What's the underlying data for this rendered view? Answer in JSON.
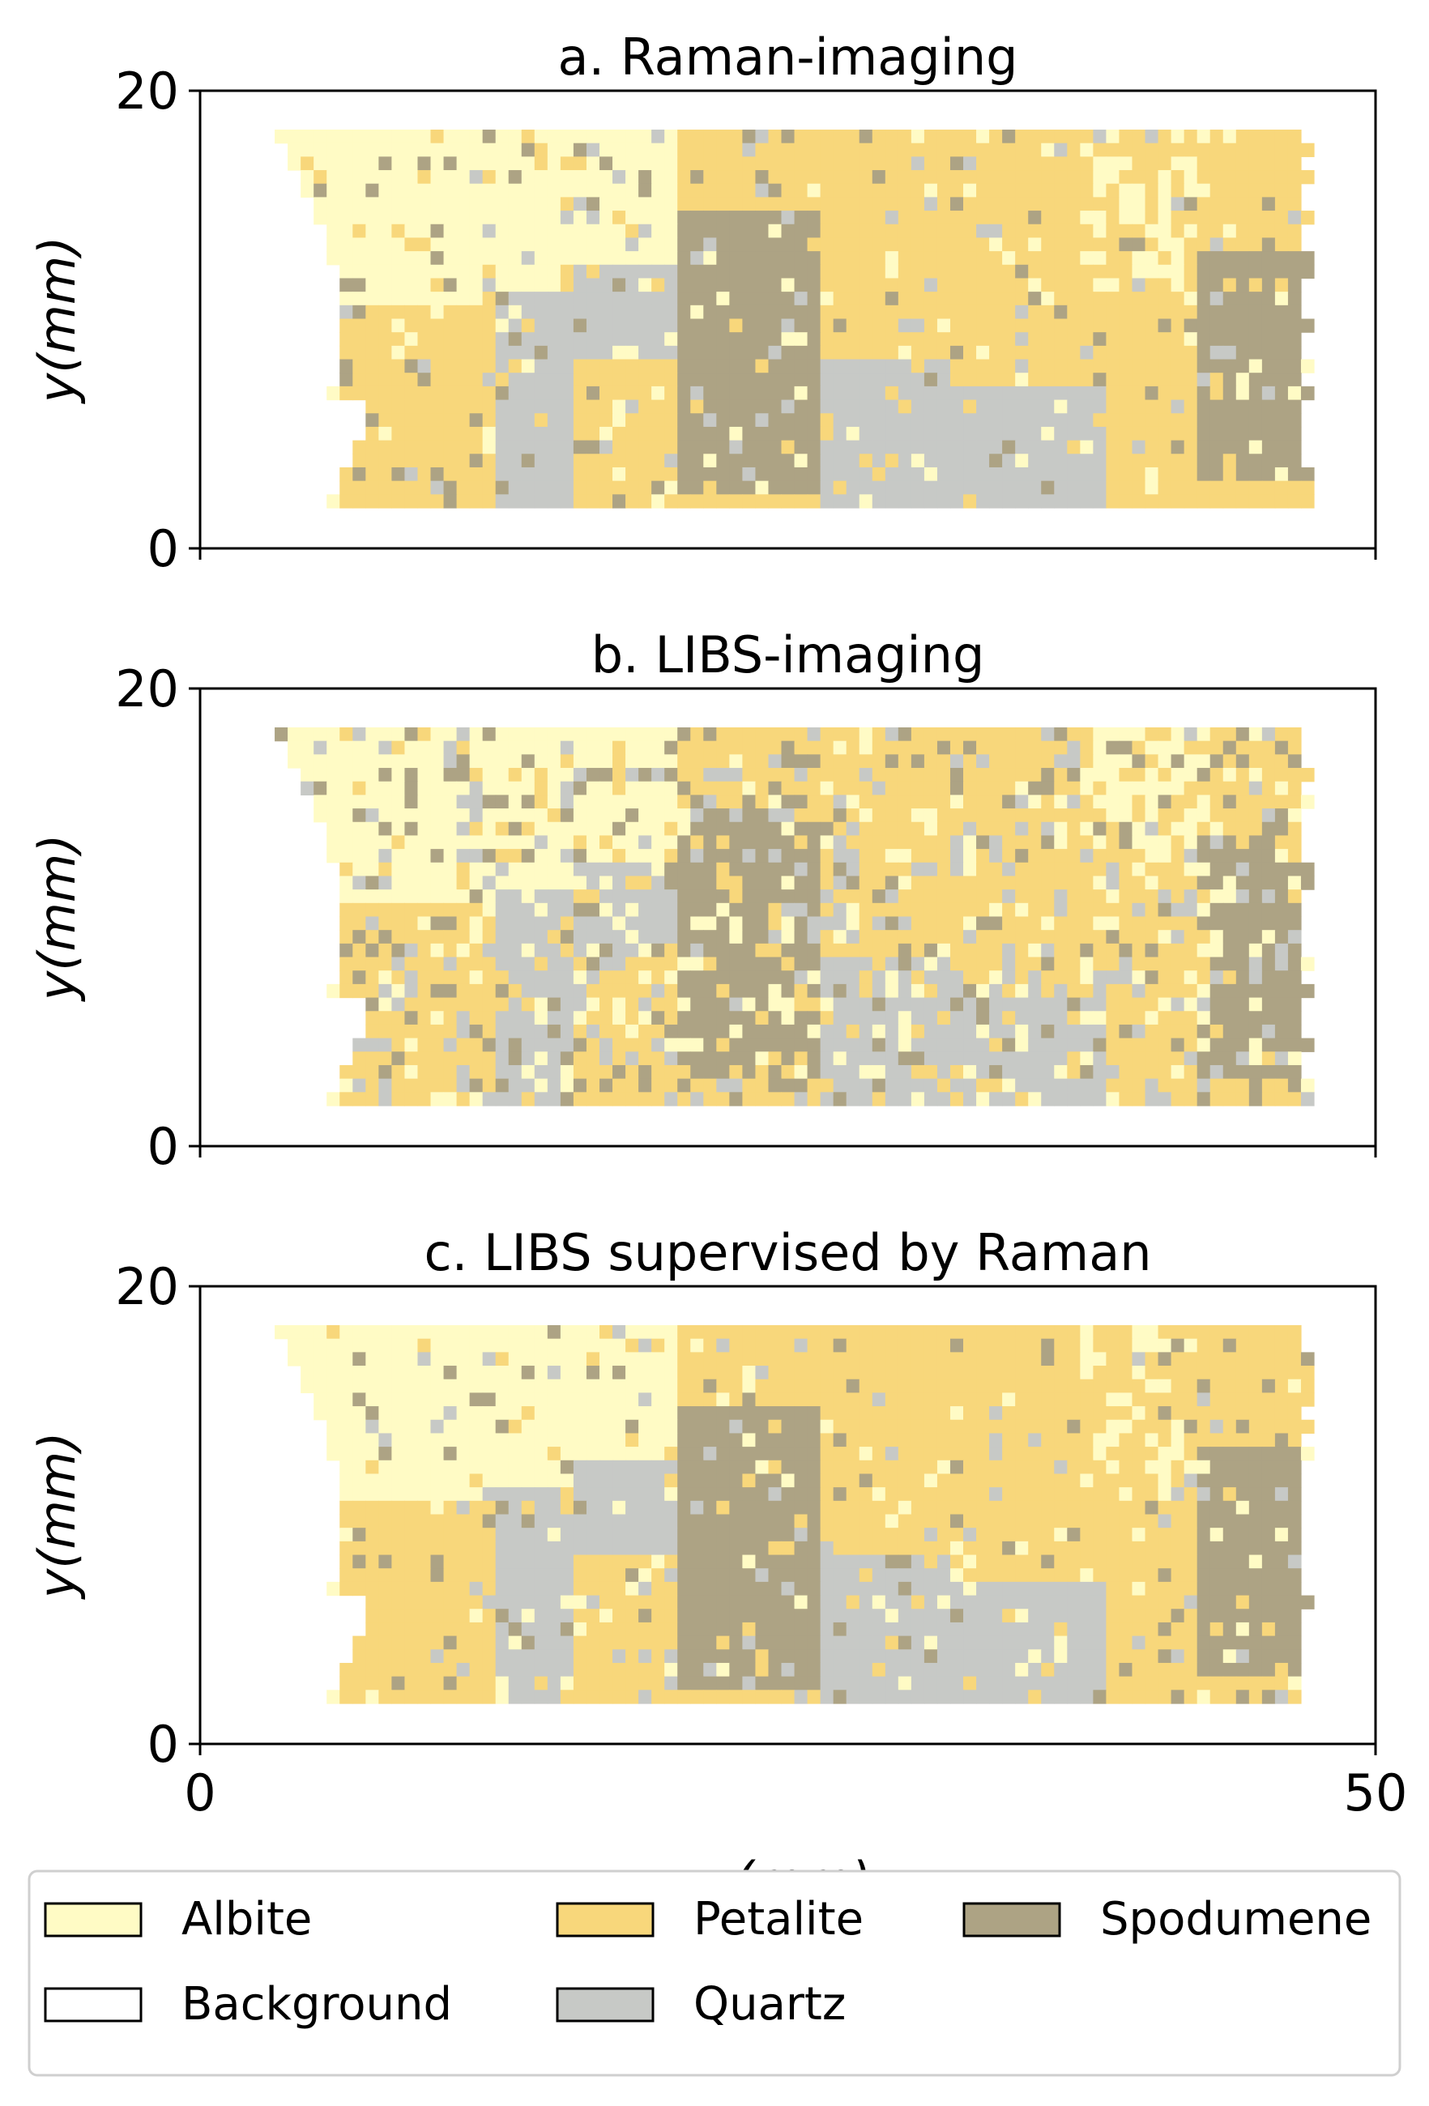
{
  "chart_data": [
    {
      "type": "heatmap",
      "title": "a. Raman-imaging",
      "ylabel": "y(mm)",
      "xlim": [
        0,
        50
      ],
      "ylim": [
        0,
        20
      ],
      "yticks": [
        "0",
        "20"
      ],
      "show_x_tick_labels": false
    },
    {
      "type": "heatmap",
      "title": "b. LIBS-imaging",
      "ylabel": "y(mm)",
      "xlim": [
        0,
        50
      ],
      "ylim": [
        0,
        20
      ],
      "yticks": [
        "0",
        "20"
      ],
      "show_x_tick_labels": false
    },
    {
      "type": "heatmap",
      "title": "c. LIBS supervised by Raman",
      "ylabel": "y(mm)",
      "xlabel": "x(mm)",
      "xlim": [
        0,
        50
      ],
      "ylim": [
        0,
        20
      ],
      "yticks": [
        "0",
        "20"
      ],
      "xticks": [
        "0",
        "50"
      ],
      "show_x_tick_labels": true
    }
  ],
  "legend": {
    "placement": "bottom",
    "entries": [
      {
        "name": "Albite",
        "color": "#fffbc5"
      },
      {
        "name": "Background",
        "color": "#ffffff"
      },
      {
        "name": "Petalite",
        "color": "#f8d77b"
      },
      {
        "name": "Quartz",
        "color": "#c7c9c6"
      },
      {
        "name": "Spodumene",
        "color": "#ada384"
      }
    ]
  }
}
